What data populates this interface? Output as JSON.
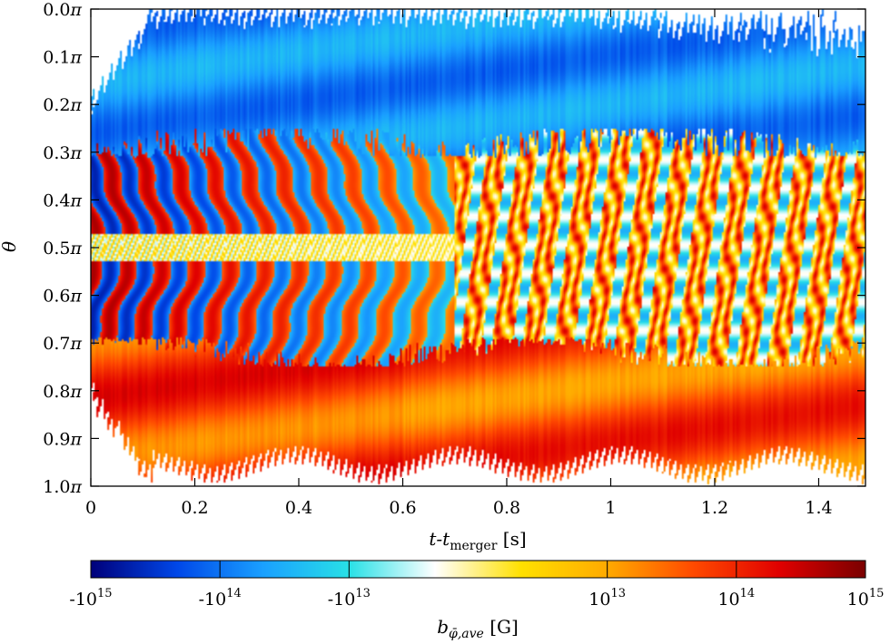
{
  "chart_data": {
    "type": "heatmap",
    "x_axis": {
      "label_main": "t-t",
      "label_sub": "merger",
      "label_unit": "[s]",
      "range": [
        0,
        1.49
      ],
      "ticks": [
        0,
        0.2,
        0.4,
        0.6,
        0.8,
        1,
        1.2,
        1.4
      ],
      "tick_labels": [
        "0",
        "0.2",
        "0.4",
        "0.6",
        "0.8",
        "1",
        "1.2",
        "1.4"
      ]
    },
    "y_axis": {
      "label": "θ",
      "range": [
        0.0,
        1.0
      ],
      "inverted": true,
      "unit": "π",
      "ticks": [
        0.0,
        0.1,
        0.2,
        0.3,
        0.4,
        0.5,
        0.6,
        0.7,
        0.8,
        0.9,
        1.0
      ],
      "tick_labels": [
        "0.0π",
        "0.1π",
        "0.2π",
        "0.3π",
        "0.4π",
        "0.5π",
        "0.6π",
        "0.7π",
        "0.8π",
        "0.9π",
        "1.0π"
      ]
    },
    "colorbar": {
      "label_main": "b",
      "label_sub": "φ̄,ave",
      "label_unit": "[G]",
      "scale": "symmetric-log",
      "range": [
        -1000000000000000.0,
        1000000000000000.0
      ],
      "ticks": [
        -1000000000000000.0,
        -100000000000000.0,
        -10000000000000.0,
        10000000000000.0,
        100000000000000.0,
        1000000000000000.0
      ],
      "tick_labels": [
        {
          "base": "-10",
          "exp": "15"
        },
        {
          "base": "-10",
          "exp": "14"
        },
        {
          "base": "-10",
          "exp": "13"
        },
        {
          "base": "10",
          "exp": "13"
        },
        {
          "base": "10",
          "exp": "14"
        },
        {
          "base": "10",
          "exp": "15"
        }
      ],
      "colors": [
        "#00007a",
        "#0047e8",
        "#1aa0ff",
        "#28e0e6",
        "#ffffff",
        "#ffe000",
        "#ffaa00",
        "#ff4a00",
        "#e00000",
        "#7a0000"
      ]
    },
    "field_structure": {
      "north_band": {
        "theta_range": [
          0.05,
          0.28
        ],
        "sign": "negative",
        "magnitude": "1e13–1e14"
      },
      "south_band": {
        "theta_range": [
          0.72,
          0.95
        ],
        "sign": "positive",
        "magnitude": "1e13–1e14"
      },
      "early_stripes": {
        "time_range": [
          0.0,
          0.7
        ],
        "pattern": "alternating sign, drifting with time",
        "magnitude": "up to 1e14–1e15"
      },
      "late_equatorial": {
        "time_range": [
          0.7,
          1.49
        ],
        "sign": "mixed, predominantly positive",
        "magnitude": "~1e13"
      },
      "pre_merger_empty": {
        "time_range": [
          0.0,
          0.03
        ],
        "theta_range": [
          0.0,
          0.2
        ]
      }
    }
  }
}
